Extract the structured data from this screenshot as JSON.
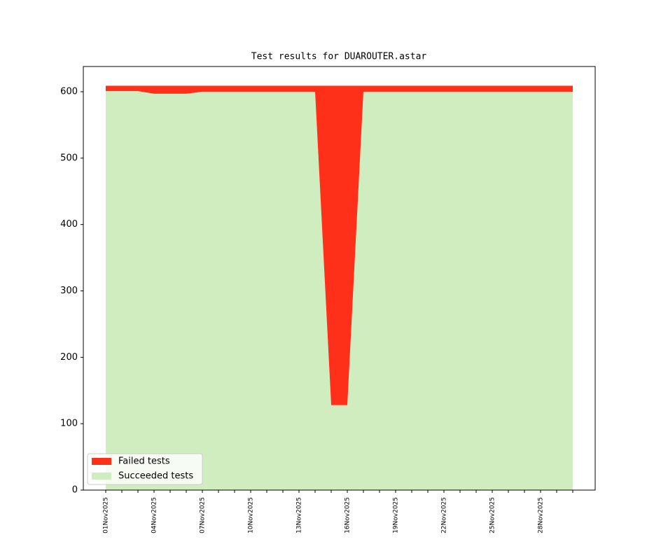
{
  "chart_data": {
    "type": "stacked_area",
    "title": "Test results for DUAROUTER.astar",
    "categories": [
      "01Nov2025",
      null,
      null,
      "04Nov2025",
      null,
      null,
      "07Nov2025",
      null,
      null,
      "10Nov2025",
      null,
      null,
      "13Nov2025",
      null,
      null,
      "16Nov2025",
      null,
      null,
      "19Nov2025",
      null,
      null,
      "22Nov2025",
      null,
      null,
      "25Nov2025",
      null,
      null,
      "28Nov2025",
      null,
      null
    ],
    "series": [
      {
        "name": "Failed tests",
        "color": "#ff3019",
        "values": [
          8,
          8,
          8,
          12,
          12,
          12,
          9,
          9,
          9,
          9,
          9,
          9,
          9,
          9,
          481,
          481,
          9,
          9,
          9,
          9,
          9,
          9,
          9,
          9,
          9,
          9,
          9,
          9,
          9,
          9
        ]
      },
      {
        "name": "Succeeded tests",
        "color": "#d0edc0",
        "values": [
          601,
          601,
          601,
          597,
          597,
          597,
          600,
          600,
          600,
          600,
          600,
          600,
          600,
          600,
          128,
          128,
          600,
          600,
          600,
          600,
          600,
          600,
          600,
          600,
          600,
          600,
          600,
          600,
          600,
          600
        ]
      }
    ],
    "ylim": [
      0,
      638
    ],
    "yticks": [
      0,
      100,
      200,
      300,
      400,
      500,
      600
    ],
    "legend": "lower left"
  }
}
